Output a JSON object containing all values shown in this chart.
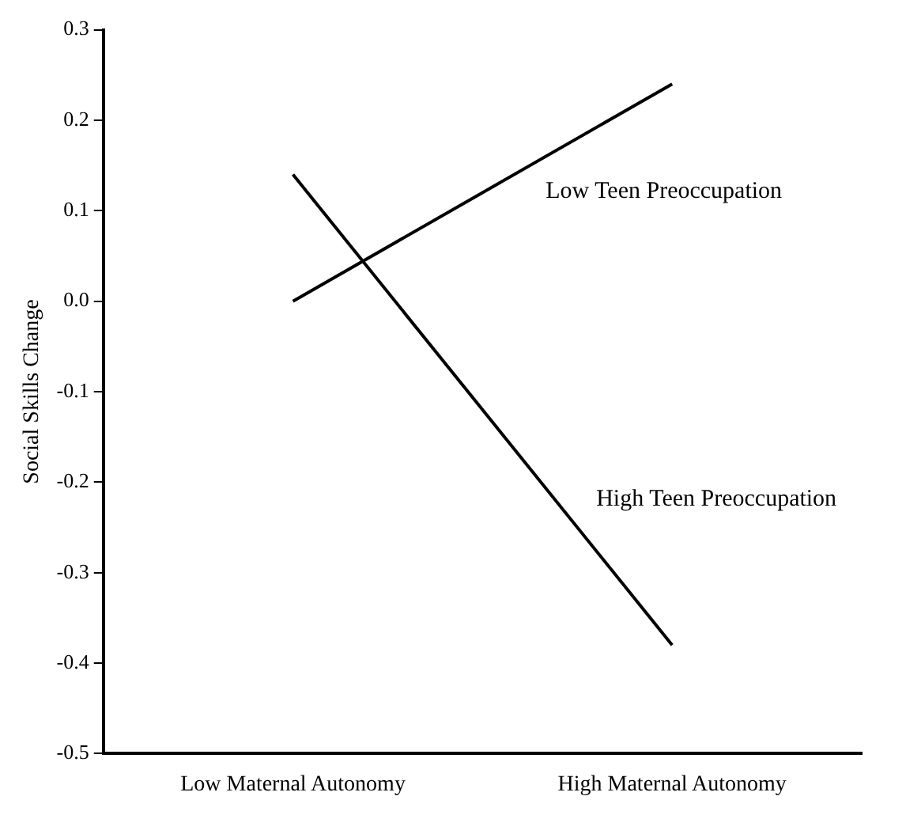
{
  "chart_data": {
    "type": "line",
    "ylabel": "Social Skills Change",
    "categories": [
      "Low Maternal Autonomy",
      "High Maternal Autonomy"
    ],
    "series": [
      {
        "name": "Low Teen Preoccupation",
        "color": "#000000",
        "values": [
          0.0,
          0.24
        ]
      },
      {
        "name": "High Teen Preoccupation",
        "color": "#000000",
        "values": [
          0.14,
          -0.38
        ]
      }
    ],
    "ylim": [
      -0.5,
      0.3
    ],
    "yticks": [
      {
        "value": -0.5,
        "label": "-0.5"
      },
      {
        "value": -0.4,
        "label": "-0.4"
      },
      {
        "value": -0.3,
        "label": "-0.3"
      },
      {
        "value": -0.2,
        "label": "-0.2"
      },
      {
        "value": -0.1,
        "label": "-0.1"
      },
      {
        "value": 0,
        "label": "0.0"
      },
      {
        "value": 0.1,
        "label": "0.1"
      },
      {
        "value": 0.2,
        "label": "0.2"
      },
      {
        "value": 0.3,
        "label": "0.3"
      }
    ],
    "grid": false,
    "legend": false,
    "marker": "none",
    "line_style": "solid"
  }
}
